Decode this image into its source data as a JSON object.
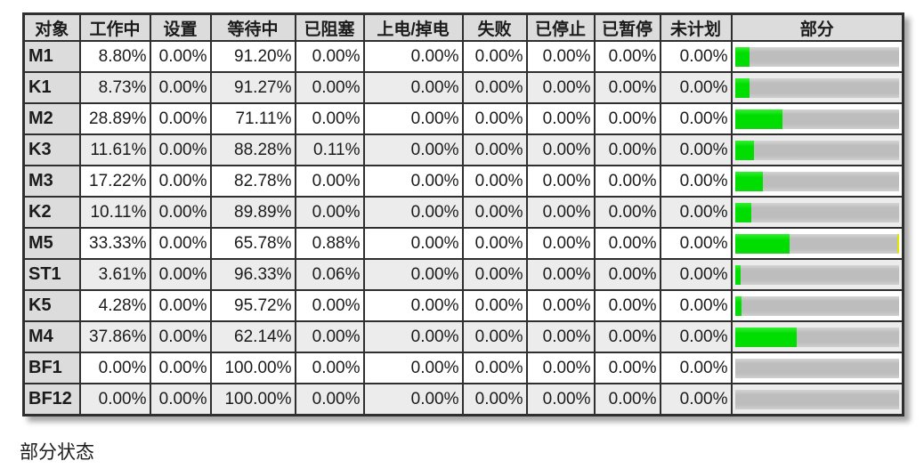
{
  "window": {
    "caption": "部分状态"
  },
  "table": {
    "columns": [
      "对象",
      "工作中",
      "设置",
      "等待中",
      "已阻塞",
      "上电/掉电",
      "失败",
      "已停止",
      "已暂停",
      "未计划",
      "部分"
    ],
    "bar_colors": {
      "working": "#00dd00",
      "waiting": "#c0c0c0",
      "blocked": "#e6e600"
    },
    "rows": [
      {
        "name": "M1",
        "cells": [
          "8.80%",
          "0.00%",
          "91.20%",
          "0.00%",
          "0.00%",
          "0.00%",
          "0.00%",
          "0.00%",
          "0.00%"
        ],
        "bar": {
          "working_pct": 8.8,
          "blocked_pct": 0.0
        }
      },
      {
        "name": "K1",
        "cells": [
          "8.73%",
          "0.00%",
          "91.27%",
          "0.00%",
          "0.00%",
          "0.00%",
          "0.00%",
          "0.00%",
          "0.00%"
        ],
        "bar": {
          "working_pct": 8.73,
          "blocked_pct": 0.0
        }
      },
      {
        "name": "M2",
        "cells": [
          "28.89%",
          "0.00%",
          "71.11%",
          "0.00%",
          "0.00%",
          "0.00%",
          "0.00%",
          "0.00%",
          "0.00%"
        ],
        "bar": {
          "working_pct": 28.89,
          "blocked_pct": 0.0
        }
      },
      {
        "name": "K3",
        "cells": [
          "11.61%",
          "0.00%",
          "88.28%",
          "0.11%",
          "0.00%",
          "0.00%",
          "0.00%",
          "0.00%",
          "0.00%"
        ],
        "bar": {
          "working_pct": 11.61,
          "blocked_pct": 0.11
        }
      },
      {
        "name": "M3",
        "cells": [
          "17.22%",
          "0.00%",
          "82.78%",
          "0.00%",
          "0.00%",
          "0.00%",
          "0.00%",
          "0.00%",
          "0.00%"
        ],
        "bar": {
          "working_pct": 17.22,
          "blocked_pct": 0.0
        }
      },
      {
        "name": "K2",
        "cells": [
          "10.11%",
          "0.00%",
          "89.89%",
          "0.00%",
          "0.00%",
          "0.00%",
          "0.00%",
          "0.00%",
          "0.00%"
        ],
        "bar": {
          "working_pct": 10.11,
          "blocked_pct": 0.0
        }
      },
      {
        "name": "M5",
        "cells": [
          "33.33%",
          "0.00%",
          "65.78%",
          "0.88%",
          "0.00%",
          "0.00%",
          "0.00%",
          "0.00%",
          "0.00%"
        ],
        "bar": {
          "working_pct": 33.33,
          "blocked_pct": 0.88
        }
      },
      {
        "name": "ST1",
        "cells": [
          "3.61%",
          "0.00%",
          "96.33%",
          "0.06%",
          "0.00%",
          "0.00%",
          "0.00%",
          "0.00%",
          "0.00%"
        ],
        "bar": {
          "working_pct": 3.61,
          "blocked_pct": 0.06
        }
      },
      {
        "name": "K5",
        "cells": [
          "4.28%",
          "0.00%",
          "95.72%",
          "0.00%",
          "0.00%",
          "0.00%",
          "0.00%",
          "0.00%",
          "0.00%"
        ],
        "bar": {
          "working_pct": 4.28,
          "blocked_pct": 0.0
        }
      },
      {
        "name": "M4",
        "cells": [
          "37.86%",
          "0.00%",
          "62.14%",
          "0.00%",
          "0.00%",
          "0.00%",
          "0.00%",
          "0.00%",
          "0.00%"
        ],
        "bar": {
          "working_pct": 37.86,
          "blocked_pct": 0.0
        }
      },
      {
        "name": "BF1",
        "cells": [
          "0.00%",
          "0.00%",
          "100.00%",
          "0.00%",
          "0.00%",
          "0.00%",
          "0.00%",
          "0.00%",
          "0.00%"
        ],
        "bar": {
          "working_pct": 0.0,
          "blocked_pct": 0.0
        }
      },
      {
        "name": "BF12",
        "cells": [
          "0.00%",
          "0.00%",
          "100.00%",
          "0.00%",
          "0.00%",
          "0.00%",
          "0.00%",
          "0.00%",
          "0.00%"
        ],
        "bar": {
          "working_pct": 0.0,
          "blocked_pct": 0.0
        }
      }
    ]
  }
}
